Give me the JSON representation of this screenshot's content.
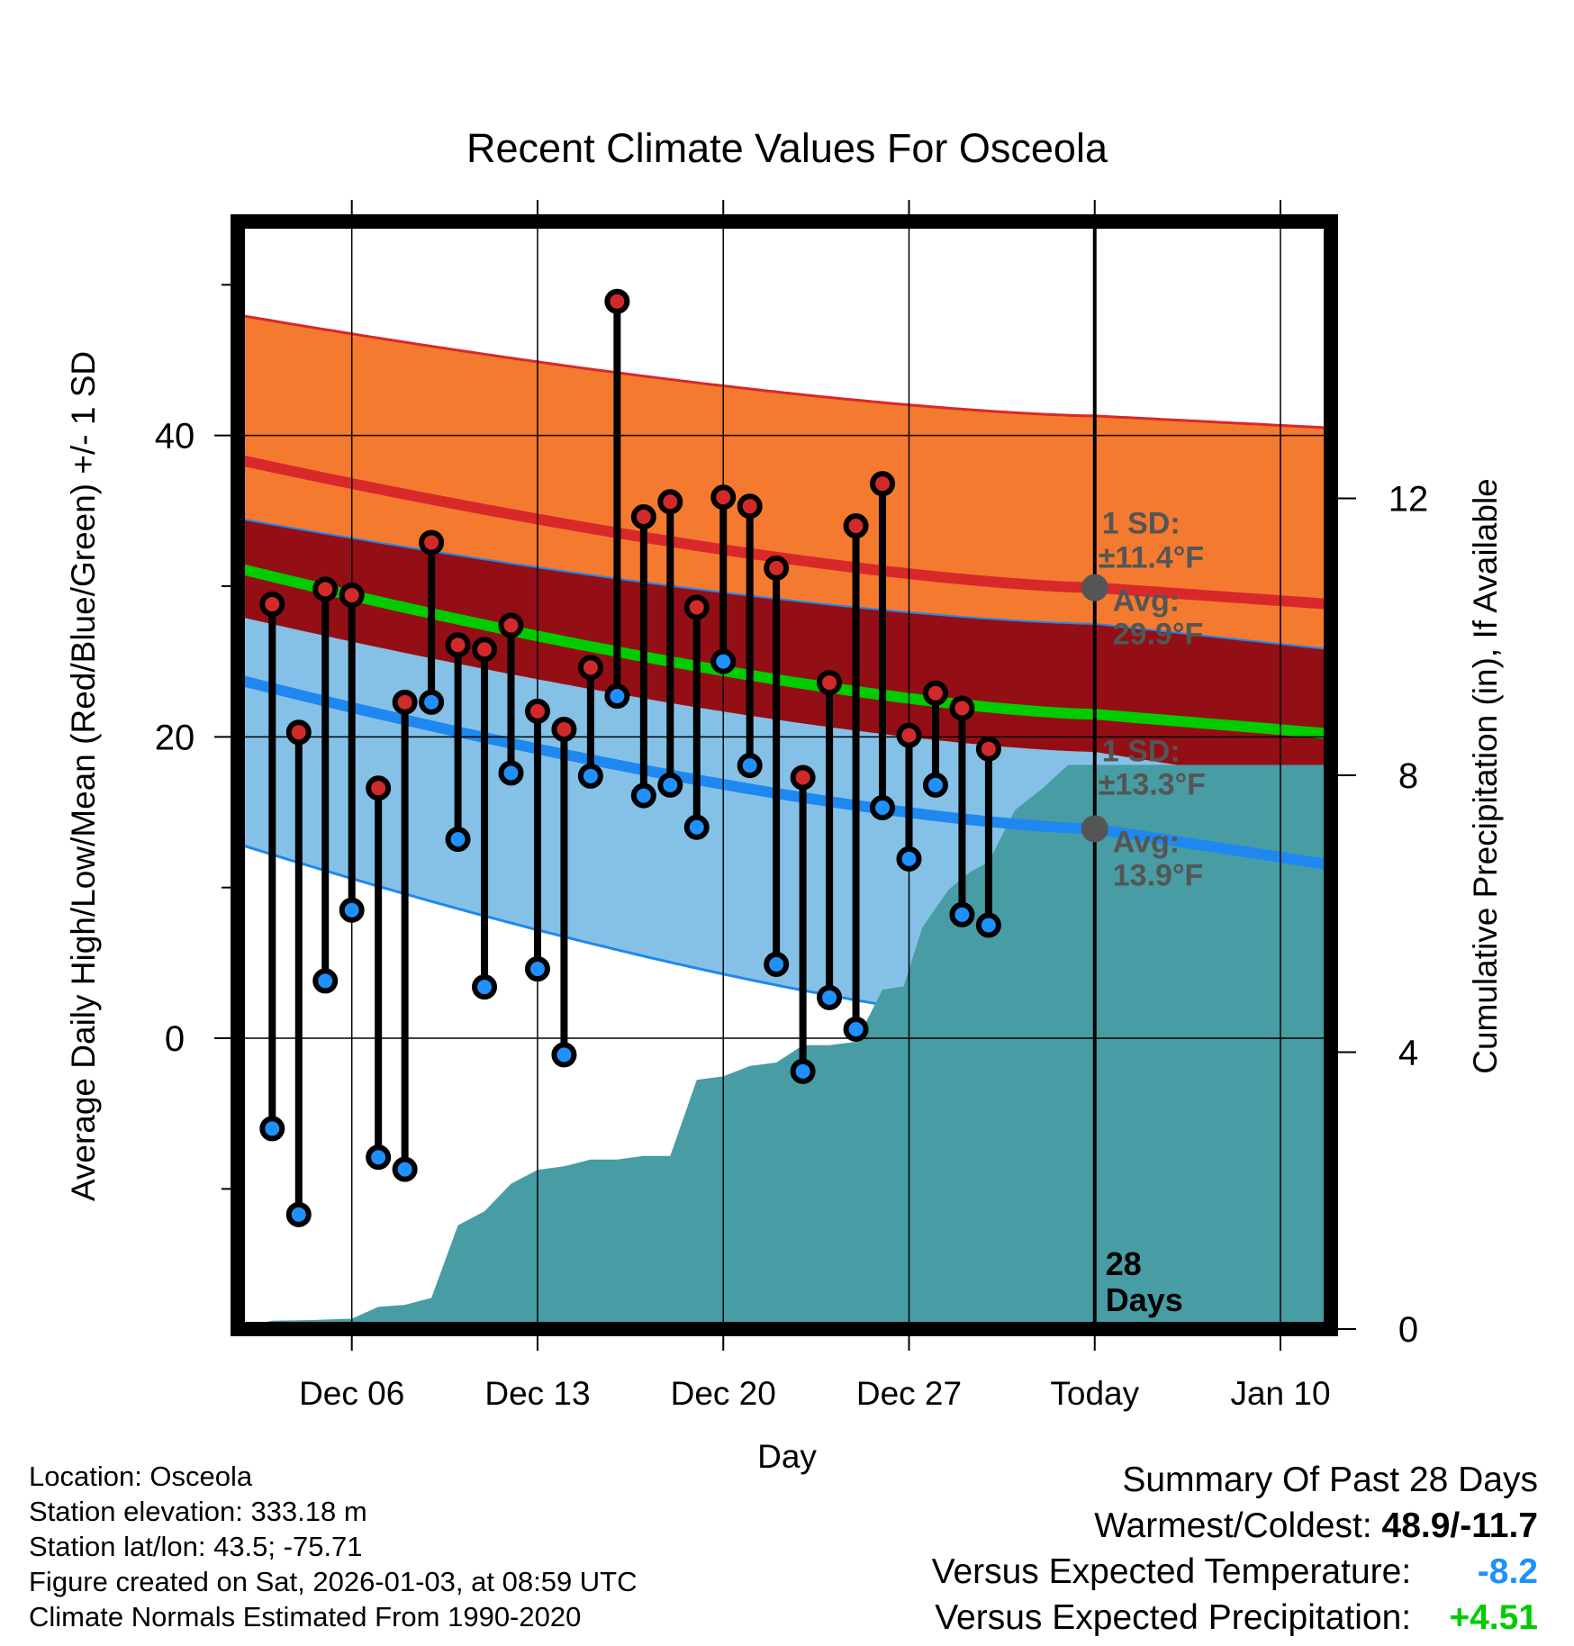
{
  "chart_data": {
    "type": "line",
    "title": "Recent Climate Values For Osceola",
    "xlabel": "Day",
    "ylabel_left": "Average Daily High/Low/Mean (Red/Blue/Green) +/- 1 SD",
    "ylabel_right": "Cumulative Precipitation (in), If Available",
    "x_range_day": [
      1.7,
      42.9
    ],
    "x_ticks": [
      {
        "day": 6,
        "label": "Dec 06"
      },
      {
        "day": 13,
        "label": "Dec 13"
      },
      {
        "day": 20,
        "label": "Dec 20"
      },
      {
        "day": 27,
        "label": "Dec 27"
      },
      {
        "day": 34,
        "label": "Today"
      },
      {
        "day": 41,
        "label": "Jan 10"
      }
    ],
    "today_day": 34,
    "left_axis": {
      "ylim": [
        -19.3,
        54.2
      ],
      "major_ticks": [
        0,
        20,
        40
      ],
      "minor_ticks": [
        -10,
        10,
        30,
        50
      ]
    },
    "right_axis": {
      "ylim": [
        0,
        16
      ],
      "ticks": [
        0,
        4,
        8,
        12
      ]
    },
    "normals": {
      "high_avg": {
        "start": 38.4,
        "today": 29.9,
        "end": 28.8
      },
      "high_upper": {
        "start": 48.0,
        "today": 41.3,
        "end": 40.5
      },
      "high_lower": {
        "start": 34.5,
        "today": 27.5,
        "end": 25.8
      },
      "low_avg": {
        "start": 23.8,
        "today": 13.9,
        "end": 11.5
      },
      "low_upper": {
        "start": 28.0,
        "today": 19.0,
        "end": 16.5
      },
      "low_lower": {
        "start": 12.9,
        "today": 0.6,
        "end": -2.5
      },
      "mean_avg": {
        "start": 31.2,
        "today": 21.5,
        "end": 20.2
      }
    },
    "daily_high": [
      28.8,
      20.3,
      29.8,
      29.4,
      16.6,
      22.3,
      32.9,
      26.1,
      25.8,
      27.4,
      21.7,
      20.5,
      24.6,
      48.9,
      34.6,
      35.6,
      28.6,
      35.9,
      35.3,
      31.2,
      17.3,
      23.6,
      34.0,
      36.8,
      20.1,
      22.9,
      21.9,
      19.2
    ],
    "daily_low": [
      -6.0,
      -11.7,
      3.8,
      8.5,
      -7.9,
      -8.7,
      22.3,
      13.2,
      3.4,
      17.6,
      4.6,
      -1.1,
      17.4,
      22.7,
      16.1,
      16.8,
      14.0,
      25.0,
      18.1,
      4.9,
      -2.2,
      2.7,
      0.6,
      15.3,
      11.9,
      16.8,
      8.2,
      7.5
    ],
    "precip_cumulative": [
      [
        2.0,
        0.05
      ],
      [
        3.0,
        0.12
      ],
      [
        4.5,
        0.13
      ],
      [
        6.0,
        0.15
      ],
      [
        7.0,
        0.32
      ],
      [
        8.0,
        0.35
      ],
      [
        9.0,
        0.45
      ],
      [
        10.0,
        1.5
      ],
      [
        11.0,
        1.7
      ],
      [
        12.0,
        2.1
      ],
      [
        13.0,
        2.3
      ],
      [
        14.0,
        2.35
      ],
      [
        15.0,
        2.45
      ],
      [
        16.0,
        2.45
      ],
      [
        17.0,
        2.5
      ],
      [
        18.0,
        2.5
      ],
      [
        19.0,
        3.6
      ],
      [
        20.0,
        3.65
      ],
      [
        21.0,
        3.8
      ],
      [
        22.0,
        3.85
      ],
      [
        23.0,
        4.1
      ],
      [
        24.0,
        4.1
      ],
      [
        25.0,
        4.15
      ],
      [
        26.0,
        4.9
      ],
      [
        26.8,
        4.95
      ],
      [
        27.5,
        5.8
      ],
      [
        28.5,
        6.35
      ],
      [
        29.3,
        6.6
      ],
      [
        30.0,
        6.75
      ],
      [
        31.0,
        7.5
      ],
      [
        32.0,
        7.8
      ],
      [
        33.0,
        8.15
      ],
      [
        34.0,
        8.15
      ],
      [
        42.9,
        8.15
      ]
    ],
    "annotations": {
      "high_sd_label": "1 SD:",
      "high_sd_value": "±11.4°F",
      "high_avg_label": "Avg:",
      "high_avg_value": "29.9°F",
      "low_sd_label": "1 SD:",
      "low_sd_value": "±13.3°F",
      "low_avg_label": "Avg:",
      "low_avg_value": "13.9°F",
      "days_number": "28",
      "days_word": "Days"
    },
    "colors": {
      "high_band": "#f47a30",
      "overlap_band": "#930f15",
      "low_band": "#85c1e6",
      "high_line": "#d9282a",
      "low_line": "#1e88f0",
      "mean_line": "#00cc00",
      "precip": "#489ca4",
      "high_dot": "#d22a2a",
      "low_dot": "#1e90ff",
      "annotation": "#555555"
    }
  },
  "info": {
    "location": "Location: Osceola",
    "elevation": "Station elevation: 333.18 m",
    "latlon": "Station lat/lon: 43.5; -75.71",
    "created": "Figure created on Sat, 2026-01-03, at 08:59 UTC",
    "normals": "Climate Normals Estimated From 1990-2020"
  },
  "summary": {
    "title": "Summary Of Past 28 Days",
    "warmest_label": "Warmest/Coldest:",
    "warmest_value": "48.9/-11.7",
    "temp_label": "Versus Expected Temperature:",
    "temp_value": "-8.2",
    "precip_label": "Versus Expected Precipitation:",
    "precip_value": "+4.51"
  }
}
